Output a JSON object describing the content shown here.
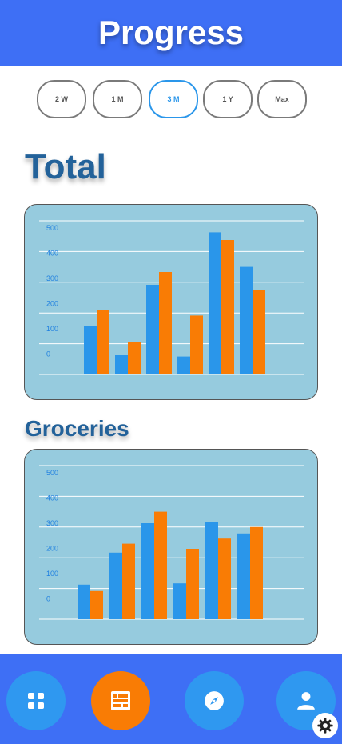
{
  "header": {
    "title": "Progress"
  },
  "ranges": [
    {
      "label": "2 W",
      "active": false
    },
    {
      "label": "1 M",
      "active": false
    },
    {
      "label": "3 M",
      "active": true
    },
    {
      "label": "1 Y",
      "active": false
    },
    {
      "label": "Max",
      "active": false
    }
  ],
  "sections": {
    "total_title": "Total",
    "groceries_title": "Groceries"
  },
  "chart_data": [
    {
      "type": "bar",
      "y_ticks": [
        0,
        100,
        200,
        300,
        400,
        500
      ],
      "ylim": [
        -80,
        520
      ],
      "grid": true,
      "series": [
        {
          "color": "#2a96ea",
          "values": [
            110,
            -5,
            270,
            -10,
            475,
            340
          ]
        },
        {
          "color": "#f97c05",
          "values": [
            170,
            45,
            320,
            150,
            445,
            250
          ]
        }
      ]
    },
    {
      "type": "bar",
      "y_ticks": [
        0,
        100,
        200,
        300,
        400,
        500
      ],
      "ylim": [
        -80,
        520
      ],
      "grid": true,
      "series": [
        {
          "color": "#2a96ea",
          "values": [
            55,
            180,
            295,
            60,
            300,
            255
          ]
        },
        {
          "color": "#f97c05",
          "values": [
            30,
            215,
            340,
            195,
            235,
            280
          ]
        }
      ]
    }
  ],
  "nav": {
    "items": [
      {
        "icon": "apps-grid-icon",
        "active": false
      },
      {
        "icon": "list-layout-icon",
        "active": true
      },
      {
        "icon": "compass-icon",
        "active": false
      },
      {
        "icon": "person-icon",
        "active": false
      }
    ],
    "settings_icon": "gear-icon"
  },
  "colors": {
    "header_bg": "#3e6ff5",
    "chart_bg": "#96cbde",
    "blue": "#2a96ea",
    "orange": "#f97c05",
    "title": "#23629a"
  }
}
